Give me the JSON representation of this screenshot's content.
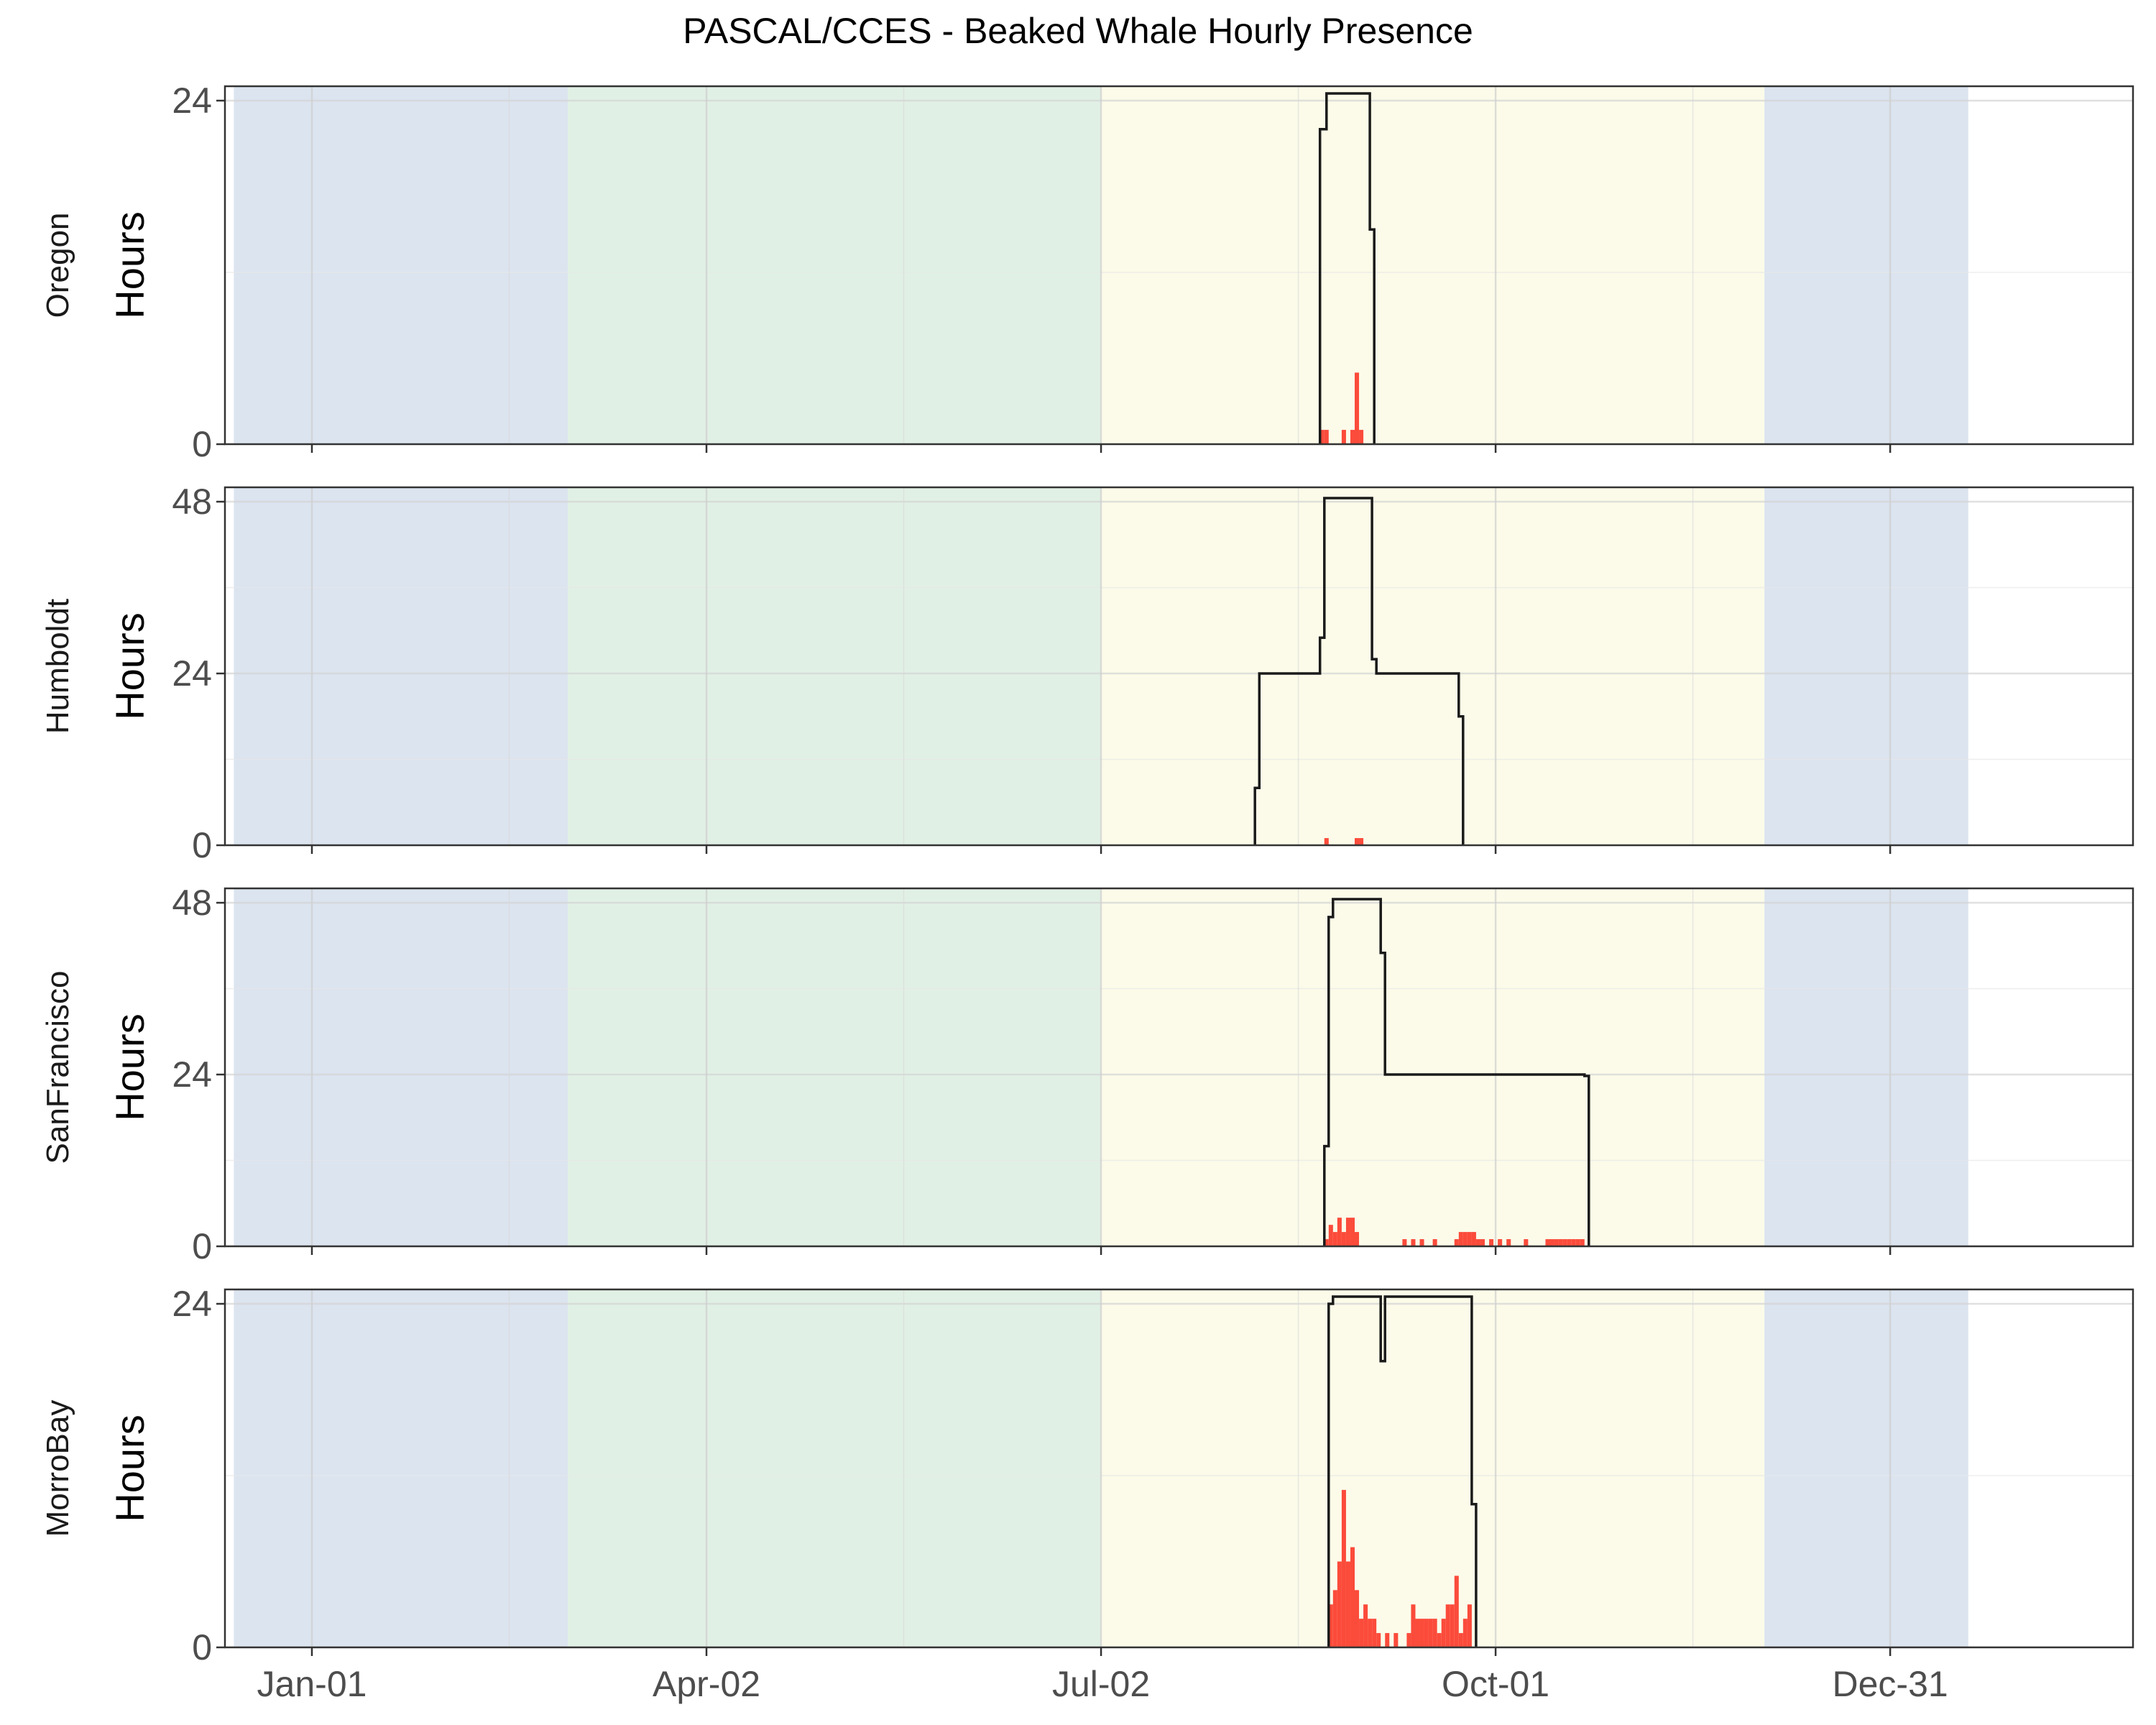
{
  "chart_data": {
    "type": "area",
    "title": "PASCAL/CCES - Beaked Whale Hourly Presence",
    "ylabel": "Hours",
    "xlim": [
      1,
      366
    ],
    "x_ticks": [
      {
        "day": 1,
        "label": "Jan-01"
      },
      {
        "day": 92,
        "label": "Apr-02"
      },
      {
        "day": 183,
        "label": "Jul-02"
      },
      {
        "day": 274,
        "label": "Oct-01"
      },
      {
        "day": 365,
        "label": "Dec-31"
      }
    ],
    "season_bands": [
      {
        "season": "winter",
        "start": -17,
        "end": 60,
        "color": "#dbe4ef"
      },
      {
        "season": "spring",
        "start": 60,
        "end": 183,
        "color": "#e1f0e5"
      },
      {
        "season": "summer",
        "start": 183,
        "end": 336,
        "color": "#fcfbe9"
      },
      {
        "season": "winter",
        "start": 336,
        "end": 383,
        "color": "#dbe4ef"
      }
    ],
    "colors": {
      "effort_line": "#1a1a1a",
      "presence_bar": "#fb4b3b",
      "grid": "#e3e3e3",
      "panel_border": "#333333"
    },
    "panels": [
      {
        "name": "Oregon",
        "ylim": [
          0,
          24
        ],
        "yticks": [
          0,
          24
        ],
        "effort": [
          [
            233.5,
            0
          ],
          [
            233.5,
            22
          ],
          [
            235,
            22
          ],
          [
            235,
            24.5
          ],
          [
            245,
            24.5
          ],
          [
            245,
            15
          ],
          [
            246,
            15
          ],
          [
            246,
            0
          ]
        ],
        "presence": [
          [
            234,
            1
          ],
          [
            235,
            1
          ],
          [
            239,
            1
          ],
          [
            241,
            1
          ],
          [
            242,
            5
          ],
          [
            243,
            1
          ]
        ]
      },
      {
        "name": "Humboldt",
        "ylim": [
          0,
          48
        ],
        "yticks": [
          0,
          24,
          48
        ],
        "effort": [
          [
            218.5,
            0
          ],
          [
            218.5,
            8
          ],
          [
            219.5,
            8
          ],
          [
            219.5,
            24
          ],
          [
            233.5,
            24
          ],
          [
            233.5,
            29
          ],
          [
            234.5,
            29
          ],
          [
            234.5,
            48.5
          ],
          [
            245.5,
            48.5
          ],
          [
            245.5,
            26
          ],
          [
            246.5,
            26
          ],
          [
            246.5,
            24
          ],
          [
            265.5,
            24
          ],
          [
            265.5,
            18
          ],
          [
            266.5,
            18
          ],
          [
            266.5,
            0
          ]
        ],
        "presence": [
          [
            235,
            1
          ],
          [
            242,
            1
          ],
          [
            243,
            1
          ]
        ]
      },
      {
        "name": "SanFrancisco",
        "ylim": [
          0,
          48
        ],
        "yticks": [
          0,
          24,
          48
        ],
        "effort": [
          [
            234.5,
            0
          ],
          [
            234.5,
            14
          ],
          [
            235.5,
            14
          ],
          [
            235.5,
            46
          ],
          [
            236.5,
            46
          ],
          [
            236.5,
            48.5
          ],
          [
            247.5,
            48.5
          ],
          [
            247.5,
            41
          ],
          [
            248.5,
            41
          ],
          [
            248.5,
            24
          ],
          [
            294.5,
            24
          ],
          [
            294.5,
            23.8
          ],
          [
            295.5,
            23.8
          ],
          [
            295.5,
            0
          ]
        ],
        "presence": [
          [
            235,
            1
          ],
          [
            236,
            3
          ],
          [
            237,
            2
          ],
          [
            238,
            4
          ],
          [
            239,
            2
          ],
          [
            240,
            4
          ],
          [
            241,
            4
          ],
          [
            242,
            2
          ],
          [
            253,
            1
          ],
          [
            255,
            1
          ],
          [
            257,
            1
          ],
          [
            260,
            1
          ],
          [
            265,
            1
          ],
          [
            266,
            2
          ],
          [
            267,
            2
          ],
          [
            268,
            2
          ],
          [
            269,
            2
          ],
          [
            270,
            1
          ],
          [
            271,
            1
          ],
          [
            273,
            1
          ],
          [
            275,
            1
          ],
          [
            277,
            1
          ],
          [
            281,
            1
          ],
          [
            286,
            1
          ],
          [
            287,
            1
          ],
          [
            288,
            1
          ],
          [
            289,
            1
          ],
          [
            290,
            1
          ],
          [
            291,
            1
          ],
          [
            292,
            1
          ],
          [
            293,
            1
          ],
          [
            294,
            1
          ]
        ]
      },
      {
        "name": "MorroBay",
        "ylim": [
          0,
          24
        ],
        "yticks": [
          0,
          24
        ],
        "effort": [
          [
            235.5,
            0
          ],
          [
            235.5,
            24
          ],
          [
            236.5,
            24
          ],
          [
            236.5,
            24.5
          ],
          [
            247.5,
            24.5
          ],
          [
            247.5,
            20
          ],
          [
            248.5,
            20
          ],
          [
            248.5,
            24.5
          ],
          [
            268.5,
            24.5
          ],
          [
            268.5,
            10
          ],
          [
            269.5,
            10
          ],
          [
            269.5,
            0
          ]
        ],
        "presence": [
          [
            236,
            3
          ],
          [
            237,
            4
          ],
          [
            238,
            6
          ],
          [
            239,
            11
          ],
          [
            240,
            6
          ],
          [
            241,
            7
          ],
          [
            242,
            4
          ],
          [
            243,
            2
          ],
          [
            244,
            3
          ],
          [
            245,
            2
          ],
          [
            246,
            2
          ],
          [
            247,
            1
          ],
          [
            249,
            1
          ],
          [
            251,
            1
          ],
          [
            254,
            1
          ],
          [
            255,
            3
          ],
          [
            256,
            2
          ],
          [
            257,
            2
          ],
          [
            258,
            2
          ],
          [
            259,
            2
          ],
          [
            260,
            2
          ],
          [
            261,
            1
          ],
          [
            262,
            2
          ],
          [
            263,
            3
          ],
          [
            264,
            3
          ],
          [
            265,
            5
          ],
          [
            266,
            1
          ],
          [
            267,
            2
          ],
          [
            268,
            3
          ]
        ]
      }
    ]
  }
}
